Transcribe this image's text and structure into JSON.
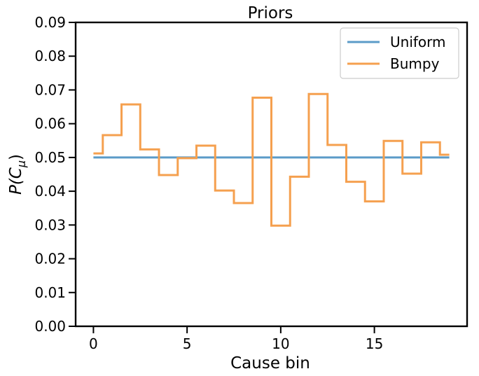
{
  "chart_data": {
    "type": "line",
    "title": "Priors",
    "xlabel": "Cause bin",
    "ylabel_main": "P(C",
    "ylabel_sub": "μ",
    "ylabel_close": ")",
    "xlim": [
      -0.95,
      19.95
    ],
    "ylim": [
      0,
      0.09
    ],
    "xticks": [
      0,
      5,
      10,
      15
    ],
    "xtick_labels": [
      "0",
      "5",
      "10",
      "15"
    ],
    "yticks": [
      0,
      0.01,
      0.02,
      0.03,
      0.04,
      0.05,
      0.06,
      0.07,
      0.08,
      0.09
    ],
    "ytick_labels": [
      "0.00",
      "0.01",
      "0.02",
      "0.03",
      "0.04",
      "0.05",
      "0.06",
      "0.07",
      "0.08",
      "0.09"
    ],
    "x": [
      0,
      1,
      2,
      3,
      4,
      5,
      6,
      7,
      8,
      9,
      10,
      11,
      12,
      13,
      14,
      15,
      16,
      17,
      18,
      19
    ],
    "series": [
      {
        "name": "Uniform",
        "color": "#5b9bc8",
        "values": [
          0.05,
          0.05,
          0.05,
          0.05,
          0.05,
          0.05,
          0.05,
          0.05,
          0.05,
          0.05,
          0.05,
          0.05,
          0.05,
          0.05,
          0.05,
          0.05,
          0.05,
          0.05,
          0.05,
          0.05
        ]
      },
      {
        "name": "Bumpy",
        "color": "#f5a04f",
        "values": [
          0.0512,
          0.0566,
          0.0657,
          0.0524,
          0.0448,
          0.0498,
          0.0535,
          0.0402,
          0.0365,
          0.0677,
          0.0298,
          0.0443,
          0.0688,
          0.0537,
          0.0428,
          0.037,
          0.0549,
          0.0452,
          0.0545,
          0.0508
        ]
      }
    ],
    "step_where": "mid",
    "legend_position": "top-right",
    "grid": false
  }
}
